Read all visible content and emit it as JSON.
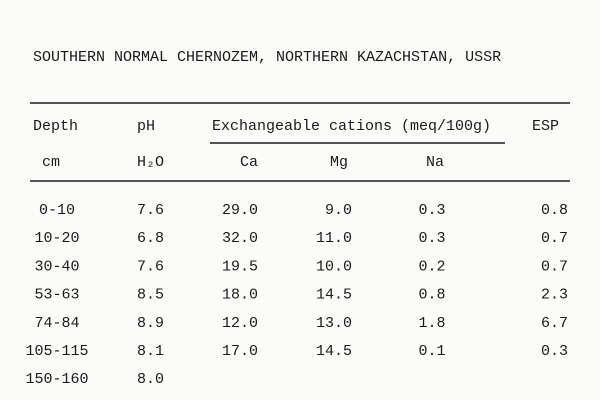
{
  "title": "SOUTHERN NORMAL CHERNOZEM, NORTHERN KAZACHSTAN, USSR",
  "header": {
    "depth": "Depth",
    "ph": "pH",
    "group": "Exchangeable cations (meq/100g)",
    "esp": "ESP",
    "depth_unit": "cm",
    "ph_unit": "H₂O",
    "ca": "Ca",
    "mg": "Mg",
    "na": "Na"
  },
  "table": {
    "rows": [
      [
        "0-10",
        "7.6",
        "29.0",
        "9.0",
        "0.3",
        "0.8"
      ],
      [
        "10-20",
        "6.8",
        "32.0",
        "11.0",
        "0.3",
        "0.7"
      ],
      [
        "30-40",
        "7.6",
        "19.5",
        "10.0",
        "0.2",
        "0.7"
      ],
      [
        "53-63",
        "8.5",
        "18.0",
        "14.5",
        "0.8",
        "2.3"
      ],
      [
        "74-84",
        "8.9",
        "12.0",
        "13.0",
        "1.8",
        "6.7"
      ],
      [
        "105-115",
        "8.1",
        "17.0",
        "14.5",
        "0.1",
        "0.3"
      ],
      [
        "150-160",
        "8.0"
      ]
    ]
  }
}
